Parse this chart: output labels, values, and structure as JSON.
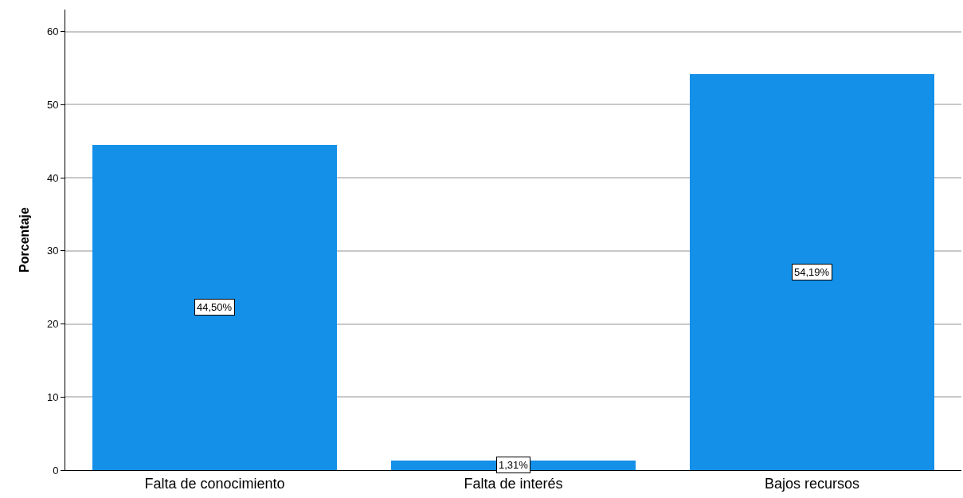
{
  "chart_data": {
    "type": "bar",
    "ylabel": "Porcentaje",
    "categories": [
      "Falta de conocimiento",
      "Falta de interés",
      "Bajos recursos"
    ],
    "values": [
      44.5,
      1.31,
      54.19
    ],
    "value_labels": [
      "44,50%",
      "1,31%",
      "54,19%"
    ],
    "color": "#1490e8",
    "ylim": [
      0,
      63
    ],
    "yticks": [
      0,
      10,
      20,
      30,
      40,
      50,
      60
    ],
    "grid": "y",
    "legend": false
  }
}
